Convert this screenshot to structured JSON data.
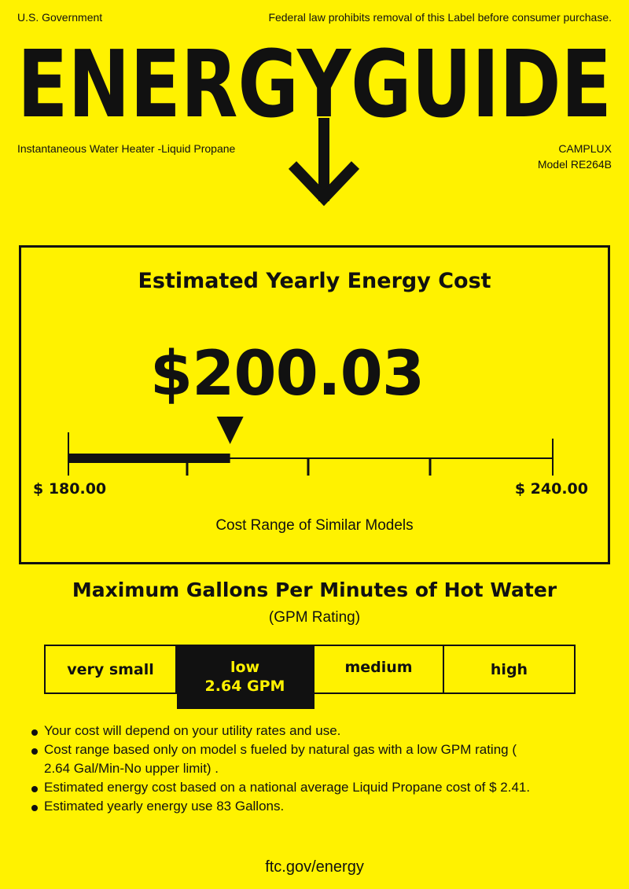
{
  "header": {
    "gov": "U.S. Government",
    "notice": "Federal law prohibits removal of this Label before consumer purchase.",
    "title": "ENERGYGUIDE",
    "product_type": "Instantaneous Water Heater -Liquid Propane",
    "brand": "CAMPLUX",
    "model": "Model RE264B"
  },
  "cost": {
    "heading": "Estimated Yearly Energy Cost",
    "value": "$200.03",
    "value_number": 200.03,
    "range_min": 180.0,
    "range_max": 240.0,
    "min_label": "$ 180.00",
    "max_label": "$ 240.00",
    "range_caption": "Cost Range of Similar Models"
  },
  "gpm": {
    "heading": "Maximum Gallons Per Minutes of Hot Water",
    "subheading": "(GPM Rating)",
    "categories": [
      "very small",
      "low",
      "medium",
      "high"
    ],
    "selected_value": "2.64 GPM"
  },
  "notes": [
    "Your cost will depend on your utility rates and use.",
    "Cost range based only on model s fueled by natural gas with a low GPM rating ( 2.64 Gal/Min-No upper limit) .",
    "Estimated energy cost based on a national average Liquid Propane cost of  $ 2.41.",
    "Estimated yearly energy use 83 Gallons."
  ],
  "footer": {
    "url": "ftc.gov/energy"
  },
  "colors": {
    "background": "#FFF200",
    "ink": "#111111"
  }
}
